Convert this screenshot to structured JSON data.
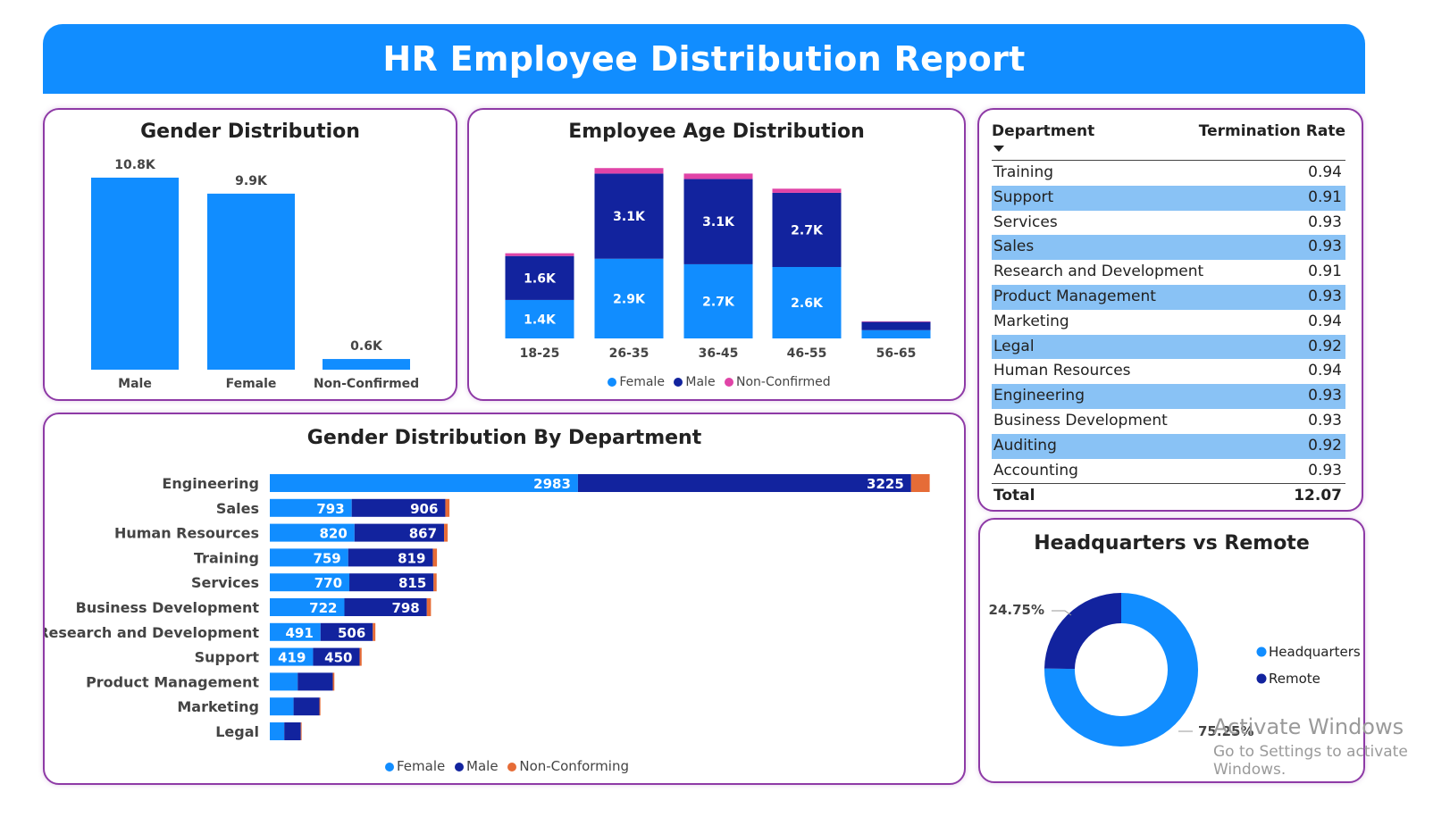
{
  "title": "HR Employee Distribution Report",
  "colors": {
    "header": "#118dff",
    "female": "#118dff",
    "male": "#12239e",
    "nonconf_age": "#e044a7",
    "nonconf_dept": "#e66c37"
  },
  "gender_card": {
    "title": "Gender Distribution"
  },
  "age_card": {
    "title": "Employee Age Distribution",
    "legend": [
      "Female",
      "Male",
      "Non-Confirmed"
    ]
  },
  "dept_card": {
    "title": "Gender Distribution By Department",
    "legend": [
      "Female",
      "Male",
      "Non-Conforming"
    ]
  },
  "table": {
    "col1": "Department",
    "col2": "Termination Rate",
    "rows": [
      {
        "dept": "Training",
        "rate": "0.94"
      },
      {
        "dept": "Support",
        "rate": "0.91"
      },
      {
        "dept": "Services",
        "rate": "0.93"
      },
      {
        "dept": "Sales",
        "rate": "0.93"
      },
      {
        "dept": "Research and Development",
        "rate": "0.91"
      },
      {
        "dept": "Product Management",
        "rate": "0.93"
      },
      {
        "dept": "Marketing",
        "rate": "0.94"
      },
      {
        "dept": "Legal",
        "rate": "0.92"
      },
      {
        "dept": "Human Resources",
        "rate": "0.94"
      },
      {
        "dept": "Engineering",
        "rate": "0.93"
      },
      {
        "dept": "Business Development",
        "rate": "0.93"
      },
      {
        "dept": "Auditing",
        "rate": "0.92"
      },
      {
        "dept": "Accounting",
        "rate": "0.93"
      }
    ],
    "total_label": "Total",
    "total_value": "12.07"
  },
  "hq_card": {
    "title": "Headquarters vs Remote"
  },
  "watermark": {
    "line1": "Activate Windows",
    "line2": "Go to Settings to activate Windows."
  },
  "chart_data": [
    {
      "type": "bar",
      "title": "Gender Distribution",
      "categories": [
        "Male",
        "Female",
        "Non-Confirmed"
      ],
      "values": [
        10.8,
        9.9,
        0.6
      ],
      "labels": [
        "10.8K",
        "9.9K",
        "0.6K"
      ],
      "ylim": [
        0,
        11.5
      ]
    },
    {
      "type": "bar",
      "stacked": true,
      "title": "Employee Age Distribution",
      "categories": [
        "18-25",
        "26-35",
        "36-45",
        "46-55",
        "56-65"
      ],
      "series": [
        {
          "name": "Female",
          "values": [
            1.4,
            2.9,
            2.7,
            2.6,
            0.3
          ],
          "labels": [
            "1.4K",
            "2.9K",
            "2.7K",
            "2.6K",
            ""
          ]
        },
        {
          "name": "Male",
          "values": [
            1.6,
            3.1,
            3.1,
            2.7,
            0.3
          ],
          "labels": [
            "1.6K",
            "3.1K",
            "3.1K",
            "2.7K",
            ""
          ]
        },
        {
          "name": "Non-Confirmed",
          "values": [
            0.1,
            0.2,
            0.2,
            0.15,
            0.02
          ],
          "labels": [
            "",
            "",
            "",
            "",
            ""
          ]
        }
      ],
      "ylim": [
        0,
        6.5
      ],
      "legend": "bottom"
    },
    {
      "type": "bar",
      "orientation": "horizontal",
      "stacked": true,
      "title": "Gender Distribution By Department",
      "categories": [
        "Engineering",
        "Sales",
        "Human Resources",
        "Training",
        "Services",
        "Business Development",
        "Research and Development",
        "Support",
        "Product Management",
        "Marketing",
        "Legal"
      ],
      "series": [
        {
          "name": "Female",
          "values": [
            2983,
            793,
            820,
            759,
            770,
            722,
            491,
            419,
            270,
            230,
            140
          ],
          "labels": [
            "2983",
            "793",
            "820",
            "759",
            "770",
            "722",
            "491",
            "419",
            "",
            "",
            ""
          ]
        },
        {
          "name": "Male",
          "values": [
            3225,
            906,
            867,
            819,
            815,
            798,
            506,
            450,
            340,
            250,
            160
          ],
          "labels": [
            "3225",
            "906",
            "867",
            "819",
            "815",
            "798",
            "506",
            "450",
            "",
            "",
            ""
          ]
        },
        {
          "name": "Non-Conforming",
          "values": [
            180,
            40,
            35,
            40,
            30,
            40,
            25,
            20,
            15,
            10,
            8
          ],
          "labels": [
            "",
            "",
            "",
            "",
            "",
            "",
            "",
            "",
            "",
            "",
            ""
          ]
        }
      ],
      "xlim": [
        0,
        6400
      ],
      "legend": "bottom"
    },
    {
      "type": "pie",
      "donut": true,
      "title": "Headquarters vs Remote",
      "categories": [
        "Headquarters",
        "Remote"
      ],
      "values": [
        75.25,
        24.75
      ],
      "labels": [
        "75.25%",
        "24.75%"
      ],
      "legend": "right"
    }
  ]
}
